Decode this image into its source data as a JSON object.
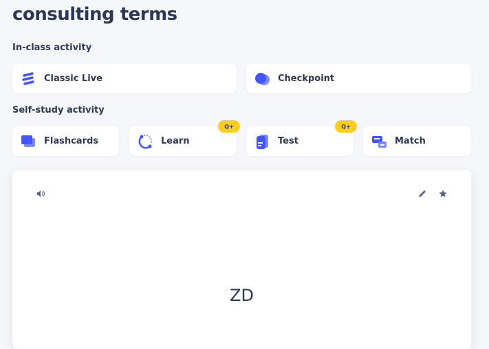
{
  "title": "consulting terms",
  "in_class": {
    "heading": "In-class activity",
    "items": [
      {
        "label": "Classic Live",
        "icon": "classic-live-icon"
      },
      {
        "label": "Checkpoint",
        "icon": "checkpoint-icon"
      }
    ]
  },
  "self_study": {
    "heading": "Self-study activity",
    "items": [
      {
        "label": "Flashcards",
        "icon": "flashcards-icon"
      },
      {
        "label": "Learn",
        "icon": "learn-icon",
        "badge": "Q+"
      },
      {
        "label": "Test",
        "icon": "test-icon",
        "badge": "Q+"
      },
      {
        "label": "Match",
        "icon": "match-icon"
      }
    ]
  },
  "flashcard": {
    "term": "ZD",
    "controls": [
      "audio-icon",
      "edit-icon",
      "star-icon"
    ]
  },
  "colors": {
    "accent": "#4255ff",
    "badge": "#ffcd1f",
    "text": "#2e3856",
    "background": "#f6f7fb"
  }
}
